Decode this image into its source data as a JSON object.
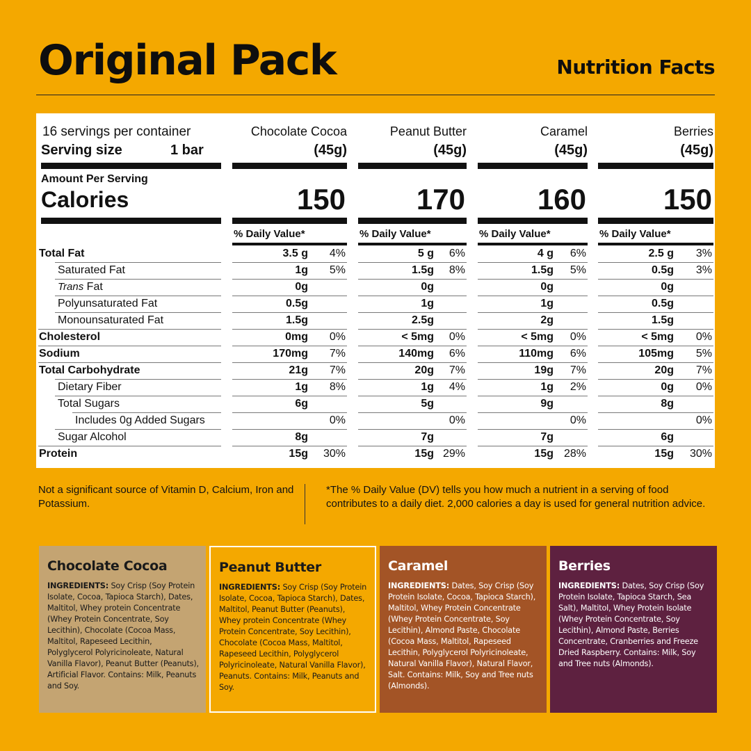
{
  "header": {
    "title": "Original Pack",
    "subtitle": "Nutrition Facts"
  },
  "servings": {
    "per_container": "16 servings per container",
    "size_label": "Serving size",
    "size_value": "1 bar"
  },
  "amount_label": "Amount Per Serving",
  "calories_label": "Calories",
  "dv_label": "% Daily Value*",
  "flavors": [
    {
      "name": "Chocolate Cocoa",
      "size": "(45g)",
      "calories": "150"
    },
    {
      "name": "Peanut Butter",
      "size": "(45g)",
      "calories": "170"
    },
    {
      "name": "Caramel",
      "size": "(45g)",
      "calories": "160"
    },
    {
      "name": "Berries",
      "size": "(45g)",
      "calories": "150"
    }
  ],
  "rows": [
    {
      "label": "Total Fat",
      "bold": true,
      "values": [
        [
          "3.5 g",
          "4%"
        ],
        [
          "5 g",
          "6%"
        ],
        [
          "4 g",
          "6%"
        ],
        [
          "2.5 g",
          "3%"
        ]
      ]
    },
    {
      "label": "Saturated Fat",
      "values": [
        [
          "1g",
          "5%"
        ],
        [
          "1.5g",
          "8%"
        ],
        [
          "1.5g",
          "5%"
        ],
        [
          "0.5g",
          "3%"
        ]
      ]
    },
    {
      "label": "Trans Fat",
      "values": [
        [
          "0g",
          ""
        ],
        [
          "0g",
          ""
        ],
        [
          "0g",
          ""
        ],
        [
          "0g",
          ""
        ]
      ]
    },
    {
      "label": "Polyunsaturated Fat",
      "values": [
        [
          "0.5g",
          ""
        ],
        [
          "1g",
          ""
        ],
        [
          "1g",
          ""
        ],
        [
          "0.5g",
          ""
        ]
      ]
    },
    {
      "label": "Monounsaturated Fat",
      "values": [
        [
          "1.5g",
          ""
        ],
        [
          "2.5g",
          ""
        ],
        [
          "2g",
          ""
        ],
        [
          "1.5g",
          ""
        ]
      ]
    },
    {
      "label": "Cholesterol",
      "bold": true,
      "values": [
        [
          "0mg",
          "0%"
        ],
        [
          "< 5mg",
          "0%"
        ],
        [
          "< 5mg",
          "0%"
        ],
        [
          "< 5mg",
          "0%"
        ]
      ]
    },
    {
      "label": "Sodium",
      "bold": true,
      "values": [
        [
          "170mg",
          "7%"
        ],
        [
          "140mg",
          "6%"
        ],
        [
          "110mg",
          "6%"
        ],
        [
          "105mg",
          "5%"
        ]
      ]
    },
    {
      "label": "Total Carbohydrate",
      "bold": true,
      "values": [
        [
          "21g",
          "7%"
        ],
        [
          "20g",
          "7%"
        ],
        [
          "19g",
          "7%"
        ],
        [
          "20g",
          "7%"
        ]
      ]
    },
    {
      "label": "Dietary Fiber",
      "values": [
        [
          "1g",
          "8%"
        ],
        [
          "1g",
          "4%"
        ],
        [
          "1g",
          "2%"
        ],
        [
          "0g",
          "0%"
        ]
      ]
    },
    {
      "label": "Total Sugars",
      "values": [
        [
          "6g",
          ""
        ],
        [
          "5g",
          ""
        ],
        [
          "9g",
          ""
        ],
        [
          "8g",
          ""
        ]
      ]
    },
    {
      "label": "Includes 0g Added Sugars",
      "values": [
        [
          "",
          "0%"
        ],
        [
          "",
          "0%"
        ],
        [
          "",
          "0%"
        ],
        [
          "",
          "0%"
        ]
      ]
    },
    {
      "label": "Sugar Alcohol",
      "values": [
        [
          "8g",
          ""
        ],
        [
          "7g",
          ""
        ],
        [
          "7g",
          ""
        ],
        [
          "6g",
          ""
        ]
      ]
    },
    {
      "label": "Protein",
      "bold": true,
      "values": [
        [
          "15g",
          "30%"
        ],
        [
          "15g",
          "29%"
        ],
        [
          "15g",
          "28%"
        ],
        [
          "15g",
          "30%"
        ]
      ]
    }
  ],
  "footnote_left": "Not a significant source of Vitamin D, Calcium, Iron and Potassium.",
  "footnote_right": "*The % Daily Value (DV) tells you how much a nutrient in a serving of food contributes to a daily diet. 2,000 calories a day is used for general nutrition advice.",
  "ingredients_label": "INGREDIENTS:",
  "cards": [
    {
      "title": "Chocolate Cocoa",
      "bg": "#C4A472",
      "fg": "#1a1a1a",
      "text": "Soy Crisp (Soy Protein Isolate, Cocoa, Tapioca Starch), Dates, Maltitol, Whey protein Concentrate (Whey Protein Concentrate, Soy Lecithin), Chocolate (Cocoa Mass, Maltitol, Rapeseed Lecithin, Polyglycerol Polyricinoleate, Natural Vanilla Flavor), Peanut Butter (Peanuts), Artificial Flavor. Contains: Milk, Peanuts and Soy."
    },
    {
      "title": "Peanut Butter",
      "bg": "#F4A800",
      "fg": "#1a1a1a",
      "border": "#ffffff",
      "text": "Soy Crisp (Soy Protein Isolate, Cocoa, Tapioca Starch), Dates, Maltitol, Peanut Butter (Peanuts), Whey protein Concentrate (Whey Protein Concentrate, Soy Lecithin), Chocolate (Cocoa Mass, Maltitol, Rapeseed Lecithin, Polyglycerol Polyricinoleate, Natural Vanilla Flavor), Peanuts. Contains: Milk, Peanuts and Soy."
    },
    {
      "title": "Caramel",
      "bg": "#A35426",
      "fg": "#ffffff",
      "text": "Dates, Soy Crisp (Soy Protein Isolate, Cocoa, Tapioca Starch), Maltitol, Whey Protein Concentrate (Whey Protein Concentrate, Soy Lecithin), Almond Paste, Chocolate (Cocoa Mass, Maltitol, Rapeseed Lecithin, Polyglycerol Polyricinoleate, Natural Vanilla Flavor), Natural Flavor, Salt. Contains: Milk, Soy and Tree nuts (Almonds)."
    },
    {
      "title": "Berries",
      "bg": "#5E2140",
      "fg": "#ffffff",
      "text": "Dates, Soy Crisp (Soy Protein Isolate, Tapioca Starch, Sea Salt), Maltitol, Whey Protein Isolate (Whey Protein Concentrate, Soy Lecithin), Almond Paste, Berries Concentrate, Cranberries and Freeze Dried Raspberry. Contains: Milk, Soy and Tree nuts (Almonds)."
    }
  ]
}
